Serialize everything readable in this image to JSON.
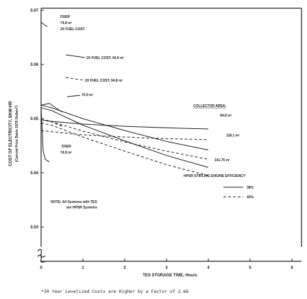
{
  "chart_data": {
    "type": "line",
    "title": "",
    "xlabel": "TES STORAGE TIME, Hours",
    "ylabel": "COST OF ELECTRICITY, $/kW-HR",
    "ylabel_sub": "(Current Price Basis 1978 Dollars*)",
    "xlim": [
      0,
      6
    ],
    "ylim": [
      0.02,
      0.07
    ],
    "x_ticks": [
      "0",
      "1",
      "2",
      "3",
      "4",
      "5",
      "6"
    ],
    "y_ticks": [
      "0.07",
      "0.06",
      "0.05",
      "0.04",
      "0.03"
    ],
    "grid": false,
    "series": [
      {
        "name": "94.8 m²",
        "style": "solid",
        "x": [
          0,
          0.25,
          1,
          2,
          3,
          4
        ],
        "y": [
          0.0498,
          0.0495,
          0.049,
          0.0486,
          0.0483,
          0.0481
        ]
      },
      {
        "name": "118.1 m²",
        "style": "solid",
        "x": [
          0,
          0.25,
          1,
          2,
          3,
          4
        ],
        "y": [
          0.0525,
          0.052,
          0.05,
          0.0478,
          0.0458,
          0.0442
        ]
      },
      {
        "name": "141.75 m²",
        "style": "solid",
        "x": [
          0,
          0.25,
          1,
          2,
          3,
          4
        ],
        "y": [
          0.052,
          0.0515,
          0.0488,
          0.0459,
          0.0432,
          0.041
        ]
      },
      {
        "name": "70.9 m²",
        "style": "solid",
        "x": [
          0,
          0.2,
          0.5
        ],
        "y": [
          0.0525,
          0.0528,
          0.0512
        ]
      },
      {
        "name": "94.8 m² dashed",
        "style": "dashed",
        "x": [
          0,
          0.25,
          1,
          2,
          3,
          4
        ],
        "y": [
          0.0478,
          0.0476,
          0.047,
          0.0466,
          0.0463,
          0.0461
        ]
      },
      {
        "name": "118.1 m² dashed",
        "style": "dashed",
        "x": [
          0,
          0.25,
          1,
          2,
          3,
          4
        ],
        "y": [
          0.0498,
          0.0494,
          0.0477,
          0.0457,
          0.044,
          0.0425
        ]
      },
      {
        "name": "141.75 m² dashed",
        "style": "dashed",
        "x": [
          0,
          0.25,
          1,
          2,
          3,
          4
        ],
        "y": [
          0.0492,
          0.0488,
          0.0466,
          0.044,
          0.0415,
          0.0395
        ]
      },
      {
        "name": "70.9 m² dashed",
        "style": "dashed",
        "x": [
          0,
          0.2,
          0.5
        ],
        "y": [
          0.0498,
          0.0496,
          0.0486
        ]
      },
      {
        "name": "DSER 74.8 m² 2X FUEL COST",
        "style": "solid",
        "x": [
          0,
          0.1,
          0.15
        ],
        "y": [
          0.0678,
          0.0672,
          0.067
        ]
      },
      {
        "name": "DSER 74.8 m²",
        "style": "solid",
        "x": [
          0,
          0.05,
          0.1,
          0.2
        ],
        "y": [
          0.052,
          0.044,
          0.0425,
          0.042
        ]
      }
    ],
    "annotations": [
      {
        "lines": [
          "DSER",
          "74.8 m²",
          "2X FUEL COST"
        ]
      },
      {
        "lines": [
          "2X FUEL COST, 94.8 m²"
        ]
      },
      {
        "lines": [
          "2X FUEL COST, 94.8 m²"
        ]
      },
      {
        "lines": [
          "70.9 m²"
        ]
      },
      {
        "lines": [
          "DSER",
          "74.8 m²"
        ]
      },
      {
        "lines": [
          "COLLECTOR AREA:"
        ]
      },
      {
        "lines": [
          "94.8 m²"
        ]
      },
      {
        "lines": [
          "118.1 m²"
        ]
      },
      {
        "lines": [
          "141.75 m²"
        ]
      },
      {
        "lines": [
          "HPSR STIRLING ENGINE EFFICIENCY"
        ]
      },
      {
        "lines": [
          "NOTE:  All Systems with TES",
          "are HPSR Systems"
        ]
      }
    ],
    "efficiency_legend": [
      {
        "value": "38%",
        "style": "solid"
      },
      {
        "value": "43%",
        "style": "dashed"
      }
    ],
    "footnote": "*30 Year Levelized Costs are Higher by a Factor of 2.66"
  }
}
